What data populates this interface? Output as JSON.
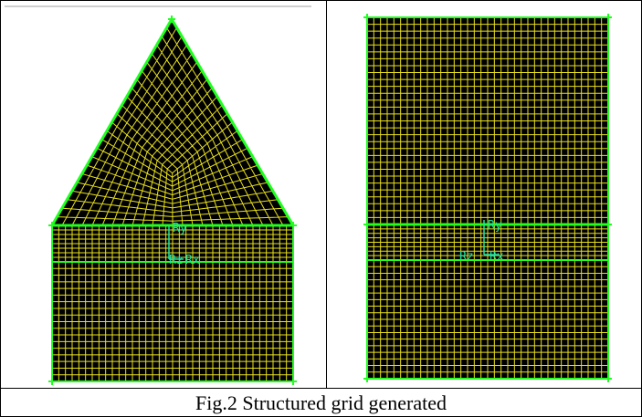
{
  "figure": {
    "caption": "Fig.2 Structured grid generated",
    "left_panel": {
      "axis_labels_upper": "Ry",
      "axis_labels_lower_z": "Rz",
      "axis_labels_lower_x": "Rx"
    },
    "right_panel": {
      "axis_labels_upper": "Ry",
      "axis_labels_lower_z": "Rz",
      "axis_labels_lower_x": "Rx"
    },
    "colors": {
      "mesh": "#e8e020",
      "boundary": "#20ff20",
      "background": "#000000",
      "axis": "#20e0a0"
    }
  }
}
